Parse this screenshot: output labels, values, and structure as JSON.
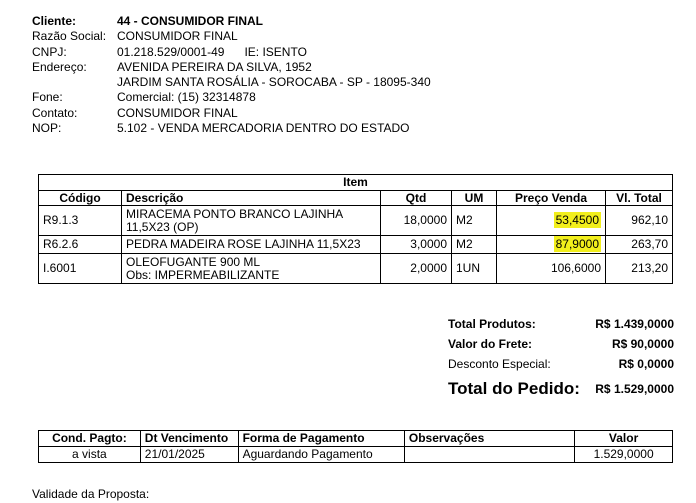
{
  "client": {
    "cliente_label": "Cliente:",
    "cliente_value": "44 - CONSUMIDOR FINAL",
    "razao_label": "Razão Social:",
    "razao_value": "CONSUMIDOR FINAL",
    "cnpj_label": "CNPJ:",
    "cnpj_value": "01.218.529/0001-49",
    "ie_label": "IE:",
    "ie_value": "ISENTO",
    "endereco_label": "Endereço:",
    "endereco_line1": "AVENIDA PEREIRA DA SILVA, 1952",
    "endereco_line2": "JARDIM SANTA ROSÁLIA - SOROCABA - SP - 18095-340",
    "fone_label": "Fone:",
    "fone_value": "Comercial: (15) 32314878",
    "contato_label": "Contato:",
    "contato_value": "CONSUMIDOR FINAL",
    "nop_label": "NOP:",
    "nop_value": "5.102 - VENDA MERCADORIA DENTRO DO ESTADO"
  },
  "items": {
    "caption": "Item",
    "headers": [
      "Código",
      "Descrição",
      "Qtd",
      "UM",
      "Preço Venda",
      "Vl. Total"
    ],
    "rows": [
      {
        "codigo": "R9.1.3",
        "descricao1": "MIRACEMA PONTO BRANCO LAJINHA",
        "descricao2": "11,5X23 (OP)",
        "qtd": "18,0000",
        "um": "M2",
        "preco": "53,4500",
        "total": "962,10"
      },
      {
        "codigo": "R6.2.6",
        "descricao1": "PEDRA MADEIRA ROSE LAJINHA 11,5X23",
        "descricao2": "",
        "qtd": "3,0000",
        "um": "M2",
        "preco": "87,9000",
        "total": "263,70"
      },
      {
        "codigo": "I.6001",
        "descricao1": "OLEOFUGANTE 900 ML",
        "descricao2": "Obs: IMPERMEABILIZANTE",
        "qtd": "2,0000",
        "um": "1UN",
        "preco": "106,6000",
        "total": "213,20"
      }
    ],
    "highlight_color": "#f2ef1c"
  },
  "totals": {
    "produtos_label": "Total Produtos:",
    "produtos_value": "R$ 1.439,0000",
    "frete_label": "Valor do Frete:",
    "frete_value": "R$ 90,0000",
    "desconto_label": "Desconto Especial:",
    "desconto_value": "R$ 0,0000",
    "pedido_label": "Total do Pedido:",
    "pedido_value": "R$ 1.529,0000"
  },
  "payment": {
    "headers": [
      "Cond. Pagto:",
      "Dt Vencimento",
      "Forma de Pagamento",
      "Observações",
      "Valor"
    ],
    "row": {
      "cond": "a vista",
      "venc": "21/01/2025",
      "forma": "Aguardando Pagamento",
      "obs": "",
      "valor": "1.529,0000"
    }
  },
  "validade_label": "Validade da Proposta:"
}
